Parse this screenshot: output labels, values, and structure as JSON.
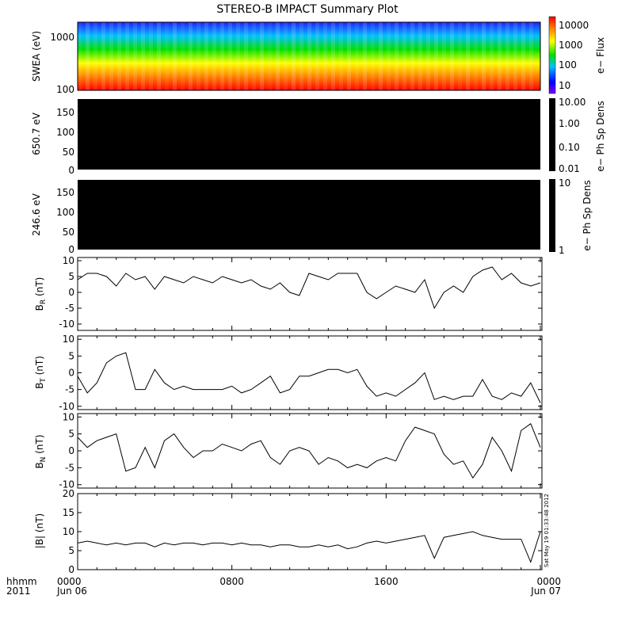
{
  "title": "STEREO-B IMPACT Summary Plot",
  "x_axis": {
    "label_line1": "hhmm",
    "label_line2": "2011",
    "ticks": [
      {
        "t": 0,
        "line1": "0000",
        "line2": "Jun 06"
      },
      {
        "t": 8,
        "line1": "0800",
        "line2": ""
      },
      {
        "t": 16,
        "line1": "1600",
        "line2": ""
      },
      {
        "t": 24,
        "line1": "0000",
        "line2": "Jun 07"
      }
    ],
    "range_hours": [
      0,
      24
    ]
  },
  "timestamp": "Sat May 19 01:33:48 2012",
  "panels": {
    "swea": {
      "ylabel": "SWEA (eV)",
      "yticks": [
        "1000",
        "100"
      ],
      "colorbar_label": "e− Flux",
      "colorbar_ticks": [
        "10000",
        "1000",
        "100",
        "10"
      ]
    },
    "ph1": {
      "ylabel": "650.7 eV",
      "yticks": [
        "150",
        "100",
        "50",
        "0"
      ],
      "colorbar_label": "e− Ph Sp Dens",
      "colorbar_ticks": [
        "10.00",
        "1.00",
        "0.10",
        "0.01"
      ]
    },
    "ph2": {
      "ylabel": "246.6 eV",
      "yticks": [
        "150",
        "100",
        "50",
        "0"
      ],
      "colorbar_label": "e− Ph Sp Dens",
      "colorbar_ticks": [
        "10",
        "1"
      ]
    },
    "br": {
      "ylabel_main": "B",
      "ylabel_sub": "R",
      "ylabel_unit": " (nT)"
    },
    "bt": {
      "ylabel_main": "B",
      "ylabel_sub": "T",
      "ylabel_unit": " (nT)"
    },
    "bn": {
      "ylabel_main": "B",
      "ylabel_sub": "N",
      "ylabel_unit": " (nT)"
    },
    "bmag": {
      "ylabel_main": "|B| (nT)"
    }
  },
  "chart_data": [
    {
      "type": "heatmap",
      "name": "SWEA",
      "ylabel": "SWEA (eV)",
      "ylim": [
        90,
        2000
      ],
      "log_y": true,
      "colorbar": {
        "label": "e− Flux",
        "range": [
          10,
          10000
        ],
        "log": true,
        "colors": "rainbow"
      },
      "x_hours": [
        0,
        24
      ]
    },
    {
      "type": "heatmap",
      "name": "650.7 eV",
      "ylabel": "650.7 eV",
      "ylim": [
        0,
        180
      ],
      "fill": "#000000",
      "colorbar": {
        "label": "e− Ph Sp Dens",
        "range": [
          0.01,
          10
        ],
        "log": true
      }
    },
    {
      "type": "heatmap",
      "name": "246.6 eV",
      "ylabel": "246.6 eV",
      "ylim": [
        0,
        180
      ],
      "fill": "#000000",
      "colorbar": {
        "label": "e− Ph Sp Dens",
        "range": [
          1,
          10
        ],
        "log": true
      }
    },
    {
      "type": "line",
      "name": "BR",
      "ylim": [
        -12,
        11
      ],
      "yticks": [
        10,
        5,
        0,
        -5,
        -10
      ],
      "x": [
        0,
        0.5,
        1,
        1.5,
        2,
        2.5,
        3,
        3.5,
        4,
        4.5,
        5,
        5.5,
        6,
        6.5,
        7,
        7.5,
        8,
        8.5,
        9,
        9.5,
        10,
        10.5,
        11,
        11.5,
        12,
        12.5,
        13,
        13.5,
        14,
        14.5,
        15,
        15.5,
        16,
        16.5,
        17,
        17.5,
        18,
        18.5,
        19,
        19.5,
        20,
        20.5,
        21,
        21.5,
        22,
        22.5,
        23,
        23.5,
        24
      ],
      "y": [
        4,
        6,
        6,
        5,
        2,
        6,
        4,
        5,
        1,
        5,
        4,
        3,
        5,
        4,
        3,
        5,
        4,
        3,
        4,
        2,
        1,
        3,
        0,
        -1,
        6,
        5,
        4,
        6,
        6,
        6,
        0,
        -2,
        0,
        2,
        1,
        0,
        4,
        -5,
        0,
        2,
        0,
        5,
        7,
        8,
        4,
        6,
        3,
        2,
        3
      ]
    },
    {
      "type": "line",
      "name": "BT",
      "ylim": [
        -11,
        11
      ],
      "yticks": [
        10,
        5,
        0,
        -5,
        -10
      ],
      "x": [
        0,
        0.5,
        1,
        1.5,
        2,
        2.5,
        3,
        3.5,
        4,
        4.5,
        5,
        5.5,
        6,
        6.5,
        7,
        7.5,
        8,
        8.5,
        9,
        9.5,
        10,
        10.5,
        11,
        11.5,
        12,
        12.5,
        13,
        13.5,
        14,
        14.5,
        15,
        15.5,
        16,
        16.5,
        17,
        17.5,
        18,
        18.5,
        19,
        19.5,
        20,
        20.5,
        21,
        21.5,
        22,
        22.5,
        23,
        23.5,
        24
      ],
      "y": [
        -1,
        -6,
        -3,
        3,
        5,
        6,
        -5,
        -5,
        1,
        -3,
        -5,
        -4,
        -5,
        -5,
        -5,
        -5,
        -4,
        -6,
        -5,
        -3,
        -1,
        -6,
        -5,
        -1,
        -1,
        0,
        1,
        1,
        0,
        1,
        -4,
        -7,
        -6,
        -7,
        -5,
        -3,
        0,
        -8,
        -7,
        -8,
        -7,
        -7,
        -2,
        -7,
        -8,
        -6,
        -7,
        -3,
        -9
      ]
    },
    {
      "type": "line",
      "name": "BN",
      "ylim": [
        -11,
        11
      ],
      "yticks": [
        10,
        5,
        0,
        -5,
        -10
      ],
      "x": [
        0,
        0.5,
        1,
        1.5,
        2,
        2.5,
        3,
        3.5,
        4,
        4.5,
        5,
        5.5,
        6,
        6.5,
        7,
        7.5,
        8,
        8.5,
        9,
        9.5,
        10,
        10.5,
        11,
        11.5,
        12,
        12.5,
        13,
        13.5,
        14,
        14.5,
        15,
        15.5,
        16,
        16.5,
        17,
        17.5,
        18,
        18.5,
        19,
        19.5,
        20,
        20.5,
        21,
        21.5,
        22,
        22.5,
        23,
        23.5,
        24
      ],
      "y": [
        4,
        1,
        3,
        4,
        5,
        -6,
        -5,
        1,
        -5,
        3,
        5,
        1,
        -2,
        0,
        0,
        2,
        1,
        0,
        2,
        3,
        -2,
        -4,
        0,
        1,
        0,
        -4,
        -2,
        -3,
        -5,
        -4,
        -5,
        -3,
        -2,
        -3,
        3,
        7,
        6,
        5,
        -1,
        -4,
        -3,
        -8,
        -4,
        4,
        0,
        -6,
        6,
        8,
        1
      ]
    },
    {
      "type": "line",
      "name": "|B|",
      "ylim": [
        0,
        20
      ],
      "yticks": [
        20,
        15,
        10,
        5,
        0
      ],
      "x": [
        0,
        0.5,
        1,
        1.5,
        2,
        2.5,
        3,
        3.5,
        4,
        4.5,
        5,
        5.5,
        6,
        6.5,
        7,
        7.5,
        8,
        8.5,
        9,
        9.5,
        10,
        10.5,
        11,
        11.5,
        12,
        12.5,
        13,
        13.5,
        14,
        14.5,
        15,
        15.5,
        16,
        16.5,
        17,
        17.5,
        18,
        18.5,
        19,
        19.5,
        20,
        20.5,
        21,
        21.5,
        22,
        22.5,
        23,
        23.5,
        24
      ],
      "y": [
        7,
        7.5,
        7,
        6.5,
        7,
        6.5,
        7,
        7,
        6,
        7,
        6.5,
        7,
        7,
        6.5,
        7,
        7,
        6.5,
        7,
        6.5,
        6.5,
        6,
        6.5,
        6.5,
        6,
        6,
        6.5,
        6,
        6.5,
        5.5,
        6,
        7,
        7.5,
        7,
        7.5,
        8,
        8.5,
        9,
        3,
        8.5,
        9,
        9.5,
        10,
        9,
        8.5,
        8,
        8,
        8,
        2,
        10
      ]
    }
  ]
}
